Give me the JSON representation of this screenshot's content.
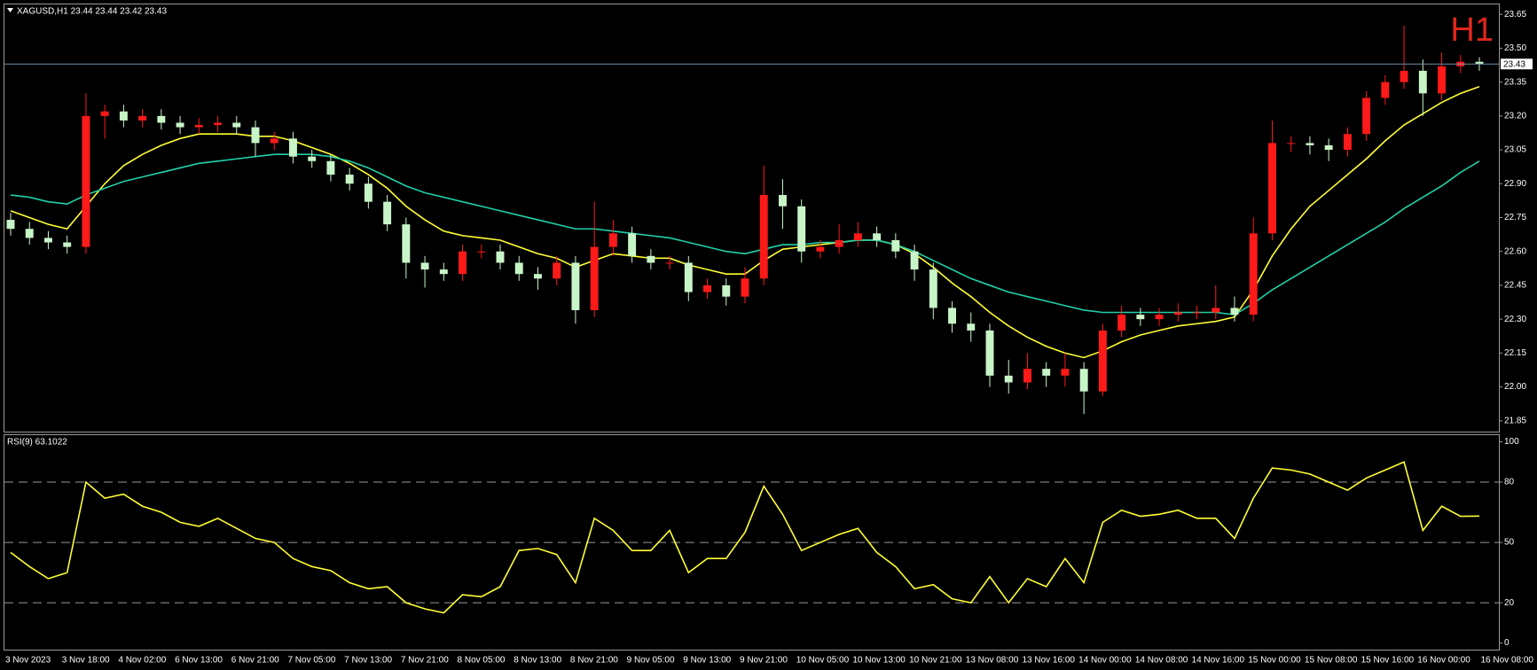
{
  "chart_data": [
    {
      "type": "candlestick",
      "title": "XAGUSD,H1  23.44 23.44 23.42 23.43",
      "period_label": "H1",
      "up_color": "#ff1a1a",
      "down_color": "#c8f5c8",
      "open": [
        22.74,
        22.7,
        22.66,
        22.64,
        22.62,
        23.2,
        23.22,
        23.18,
        23.2,
        23.17,
        23.15,
        23.16,
        23.17,
        23.15,
        23.08,
        23.1,
        23.02,
        23.0,
        22.94,
        22.9,
        22.82,
        22.72,
        22.55,
        22.52,
        22.5,
        22.6,
        22.6,
        22.55,
        22.5,
        22.48,
        22.55,
        22.34,
        22.62,
        22.68,
        22.58,
        22.55,
        22.55,
        22.42,
        22.45,
        22.4,
        22.48,
        22.85,
        22.8,
        22.6,
        22.62,
        22.65,
        22.68,
        22.65,
        22.6,
        22.52,
        22.35,
        22.28,
        22.25,
        22.05,
        22.02,
        22.08,
        22.05,
        22.08,
        21.98,
        22.25,
        22.32,
        22.3,
        22.32,
        22.33,
        22.33,
        22.35,
        22.32,
        22.68,
        23.08,
        23.08,
        23.07,
        23.05,
        23.12,
        23.28,
        23.35,
        23.4,
        23.3,
        23.42,
        23.44
      ],
      "high": [
        22.77,
        22.73,
        22.69,
        22.67,
        23.3,
        23.25,
        23.25,
        23.23,
        23.23,
        23.2,
        23.19,
        23.2,
        23.2,
        23.18,
        23.13,
        23.13,
        23.05,
        23.03,
        22.97,
        22.93,
        22.85,
        22.75,
        22.58,
        22.55,
        22.63,
        22.63,
        22.63,
        22.58,
        22.53,
        22.58,
        22.58,
        22.82,
        22.74,
        22.71,
        22.61,
        22.58,
        22.58,
        22.48,
        22.48,
        22.53,
        22.98,
        22.92,
        22.83,
        22.65,
        22.72,
        22.73,
        22.71,
        22.68,
        22.63,
        22.55,
        22.38,
        22.33,
        22.28,
        22.12,
        22.15,
        22.11,
        22.15,
        22.11,
        22.28,
        22.36,
        22.35,
        22.35,
        22.37,
        22.36,
        22.45,
        22.4,
        22.75,
        23.18,
        23.11,
        23.11,
        23.1,
        23.15,
        23.31,
        23.38,
        23.6,
        23.45,
        23.48,
        23.47,
        23.46
      ],
      "low": [
        22.67,
        22.63,
        22.61,
        22.59,
        22.59,
        23.1,
        23.15,
        23.15,
        23.14,
        23.12,
        23.12,
        23.13,
        23.12,
        23.02,
        23.05,
        22.99,
        22.97,
        22.91,
        22.87,
        22.79,
        22.69,
        22.48,
        22.44,
        22.47,
        22.47,
        22.57,
        22.52,
        22.47,
        22.43,
        22.45,
        22.28,
        22.31,
        22.58,
        22.55,
        22.52,
        22.52,
        22.38,
        22.39,
        22.36,
        22.37,
        22.45,
        22.7,
        22.55,
        22.57,
        22.59,
        22.62,
        22.62,
        22.57,
        22.47,
        22.3,
        22.24,
        22.2,
        22.0,
        21.97,
        21.99,
        22.0,
        22.0,
        21.88,
        21.96,
        22.22,
        22.27,
        22.27,
        22.29,
        22.3,
        22.3,
        22.29,
        22.29,
        22.65,
        23.04,
        23.03,
        23.0,
        23.02,
        23.09,
        23.25,
        23.32,
        23.2,
        23.27,
        23.39,
        23.4
      ],
      "close": [
        22.7,
        22.66,
        22.64,
        22.62,
        23.2,
        23.22,
        23.18,
        23.2,
        23.17,
        23.15,
        23.16,
        23.17,
        23.15,
        23.08,
        23.1,
        23.02,
        23.0,
        22.94,
        22.9,
        22.82,
        22.72,
        22.55,
        22.52,
        22.5,
        22.6,
        22.6,
        22.55,
        22.5,
        22.48,
        22.55,
        22.34,
        22.62,
        22.68,
        22.58,
        22.55,
        22.55,
        22.42,
        22.45,
        22.4,
        22.48,
        22.85,
        22.8,
        22.6,
        22.62,
        22.65,
        22.68,
        22.65,
        22.6,
        22.52,
        22.35,
        22.28,
        22.25,
        22.05,
        22.02,
        22.08,
        22.05,
        22.08,
        21.98,
        22.25,
        22.32,
        22.3,
        22.32,
        22.33,
        22.33,
        22.35,
        22.32,
        22.68,
        23.08,
        23.08,
        23.07,
        23.05,
        23.12,
        23.28,
        23.35,
        23.4,
        23.3,
        23.42,
        23.44,
        23.43
      ],
      "lines": [
        {
          "color": "#ffff33",
          "values": [
            22.78,
            22.75,
            22.72,
            22.7,
            22.8,
            22.9,
            22.98,
            23.03,
            23.07,
            23.1,
            23.12,
            23.12,
            23.12,
            23.11,
            23.11,
            23.09,
            23.06,
            23.03,
            22.99,
            22.94,
            22.88,
            22.8,
            22.74,
            22.69,
            22.67,
            22.66,
            22.65,
            22.62,
            22.59,
            22.57,
            22.53,
            22.56,
            22.59,
            22.58,
            22.57,
            22.57,
            22.54,
            22.52,
            22.5,
            22.5,
            22.56,
            22.61,
            22.62,
            22.63,
            22.64,
            22.65,
            22.65,
            22.63,
            22.59,
            22.53,
            22.46,
            22.4,
            22.33,
            22.27,
            22.22,
            22.18,
            22.15,
            22.13,
            22.16,
            22.2,
            22.23,
            22.25,
            22.27,
            22.28,
            22.29,
            22.31,
            22.43,
            22.58,
            22.7,
            22.8,
            22.87,
            22.94,
            23.01,
            23.09,
            23.16,
            23.21,
            23.26,
            23.3,
            23.33
          ]
        },
        {
          "color": "#1fd1a8",
          "values": [
            22.85,
            22.84,
            22.82,
            22.81,
            22.85,
            22.88,
            22.91,
            22.93,
            22.95,
            22.97,
            22.99,
            23.0,
            23.01,
            23.02,
            23.03,
            23.03,
            23.03,
            23.02,
            23.0,
            22.97,
            22.93,
            22.89,
            22.86,
            22.84,
            22.82,
            22.8,
            22.78,
            22.76,
            22.74,
            22.72,
            22.7,
            22.7,
            22.69,
            22.68,
            22.67,
            22.66,
            22.64,
            22.62,
            22.6,
            22.59,
            22.61,
            22.63,
            22.63,
            22.64,
            22.64,
            22.65,
            22.65,
            22.63,
            22.6,
            22.56,
            22.52,
            22.48,
            22.45,
            22.42,
            22.4,
            22.38,
            22.36,
            22.34,
            22.33,
            22.33,
            22.33,
            22.33,
            22.33,
            22.33,
            22.33,
            22.32,
            22.37,
            22.43,
            22.48,
            22.53,
            22.58,
            22.63,
            22.68,
            22.73,
            22.79,
            22.84,
            22.89,
            22.95,
            23.0
          ]
        }
      ],
      "last_price": {
        "value": 23.43,
        "label": "23.43"
      },
      "ylim": [
        21.81,
        23.69
      ],
      "yticks": [
        23.65,
        {
          "value": 23.5,
          "label": "23.50"
        },
        23.35,
        {
          "value": 23.2,
          "label": "23.20"
        },
        23.05,
        {
          "value": 22.9,
          "label": "22.90"
        },
        22.75,
        {
          "value": 22.6,
          "label": "22.60"
        },
        22.45,
        {
          "value": 22.3,
          "label": "22.30"
        },
        22.15,
        {
          "value": 22,
          "label": "22.00"
        },
        21.85
      ]
    },
    {
      "type": "line",
      "title": "RSI(9) 63.1022",
      "color": "#ffff33",
      "categories": [
        "3 Nov 2023",
        null,
        null,
        "3 Nov 18:00",
        null,
        null,
        "4 Nov 02:00",
        null,
        null,
        "6 Nov 13:00",
        null,
        null,
        "6 Nov 21:00",
        null,
        null,
        "7 Nov 05:00",
        null,
        null,
        "7 Nov 13:00",
        null,
        null,
        "7 Nov 21:00",
        null,
        null,
        "8 Nov 05:00",
        null,
        null,
        "8 Nov 13:00",
        null,
        null,
        "8 Nov 21:00",
        null,
        null,
        "9 Nov 05:00",
        null,
        null,
        "9 Nov 13:00",
        null,
        null,
        "9 Nov 21:00",
        null,
        null,
        "10 Nov 05:00",
        null,
        null,
        "10 Nov 13:00",
        null,
        null,
        "10 Nov 21:00",
        null,
        null,
        "13 Nov 08:00",
        null,
        null,
        "13 Nov 16:00",
        null,
        null,
        "14 Nov 00:00",
        null,
        null,
        "14 Nov 08:00",
        null,
        null,
        "14 Nov 16:00",
        null,
        null,
        "15 Nov 00:00",
        null,
        null,
        "15 Nov 08:00",
        null,
        null,
        "15 Nov 16:00",
        null,
        null,
        "16 Nov 00:00",
        null,
        null,
        "16 Nov 08:00"
      ],
      "values": [
        45,
        38,
        32,
        35,
        80,
        72,
        74,
        68,
        65,
        60,
        58,
        62,
        57,
        52,
        50,
        42,
        38,
        36,
        30,
        27,
        28,
        20,
        17,
        15,
        24,
        23,
        28,
        46,
        47,
        44,
        30,
        62,
        56,
        46,
        46,
        56,
        35,
        42,
        42,
        55,
        78,
        64,
        46,
        50,
        54,
        57,
        45,
        38,
        27,
        29,
        22,
        20,
        33,
        20,
        32,
        28,
        42,
        30,
        60,
        66,
        63,
        64,
        66,
        62,
        62,
        52,
        72,
        87,
        86,
        84,
        80,
        76,
        82,
        86,
        90,
        56,
        68,
        63,
        63.1022
      ],
      "ylim": [
        -2.4,
        102.9
      ],
      "yticks": [
        100,
        80,
        50,
        20,
        0
      ],
      "levels": [
        80,
        50,
        20
      ]
    }
  ]
}
